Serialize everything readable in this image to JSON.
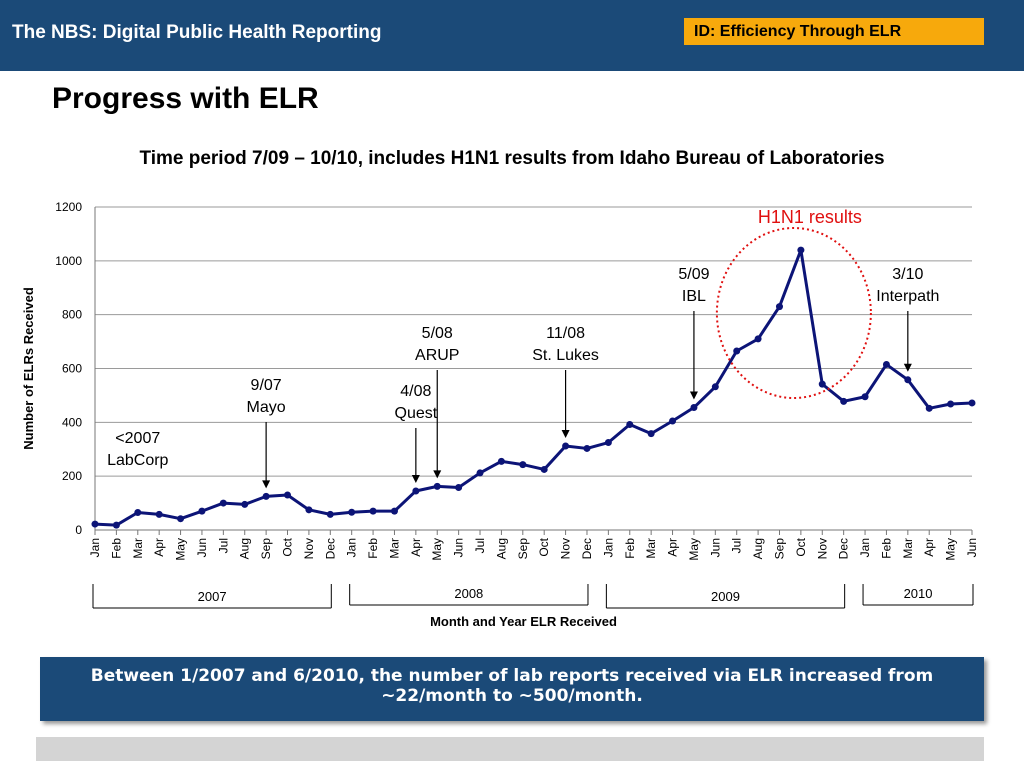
{
  "header": {
    "title": "The NBS: Digital Public Health Reporting",
    "badge": "ID: Efficiency Through ELR",
    "badge_color": "#f7a90c",
    "bar_color": "#1b4a78"
  },
  "page_title": "Progress with ELR",
  "subtitle": "Time period 7/09 – 10/10,  includes H1N1 results from Idaho Bureau of Laboratories",
  "chart_data": {
    "type": "line",
    "ylabel": "Number of ELRs Received",
    "xlabel": "Month and Year ELR Received",
    "ylim": [
      0,
      1200
    ],
    "yticks": [
      0,
      200,
      400,
      600,
      800,
      1000,
      1200
    ],
    "grid": true,
    "line_color": "#0c1477",
    "categories": [
      "Jan",
      "Feb",
      "Mar",
      "Apr",
      "May",
      "Jun",
      "Jul",
      "Aug",
      "Sep",
      "Oct",
      "Nov",
      "Dec",
      "Jan",
      "Feb",
      "Mar",
      "Apr",
      "May",
      "Jun",
      "Jul",
      "Aug",
      "Sep",
      "Oct",
      "Nov",
      "Dec",
      "Jan",
      "Feb",
      "Mar",
      "Apr",
      "May",
      "Jun",
      "Jul",
      "Aug",
      "Sep",
      "Oct",
      "Nov",
      "Dec",
      "Jan",
      "Feb",
      "Mar",
      "Apr",
      "May",
      "Jun"
    ],
    "values": [
      22,
      18,
      65,
      58,
      42,
      70,
      100,
      95,
      125,
      130,
      75,
      58,
      66,
      70,
      70,
      145,
      162,
      158,
      212,
      255,
      243,
      225,
      312,
      303,
      325,
      392,
      358,
      405,
      455,
      532,
      665,
      710,
      830,
      1040,
      542,
      478,
      495,
      615,
      558,
      452,
      468,
      472
    ],
    "year_groups": [
      {
        "label": "2007",
        "start": 0,
        "end": 11
      },
      {
        "label": "2008",
        "start": 12,
        "end": 23
      },
      {
        "label": "2009",
        "start": 24,
        "end": 35
      },
      {
        "label": "2010",
        "start": 36,
        "end": 41
      }
    ],
    "annotations": [
      {
        "lines": [
          "<2007",
          "LabCorp"
        ],
        "index": 2,
        "arrow": false
      },
      {
        "lines": [
          "9/07",
          "Mayo"
        ],
        "index": 8,
        "arrow": true
      },
      {
        "lines": [
          "4/08",
          "Quest"
        ],
        "index": 15,
        "arrow": true
      },
      {
        "lines": [
          "5/08",
          "ARUP"
        ],
        "index": 16,
        "arrow": true
      },
      {
        "lines": [
          "11/08",
          "St. Lukes"
        ],
        "index": 22,
        "arrow": true
      },
      {
        "lines": [
          "5/09",
          "IBL"
        ],
        "index": 28,
        "arrow": true
      },
      {
        "lines": [
          "3/10",
          "Interpath"
        ],
        "index": 38,
        "arrow": true
      }
    ],
    "highlight": {
      "label": "H1N1 results",
      "color": "#e01010"
    }
  },
  "note": "Between 1/2007 and 6/2010, the number of lab reports received via ELR increased from ~22/month to ~500/month."
}
